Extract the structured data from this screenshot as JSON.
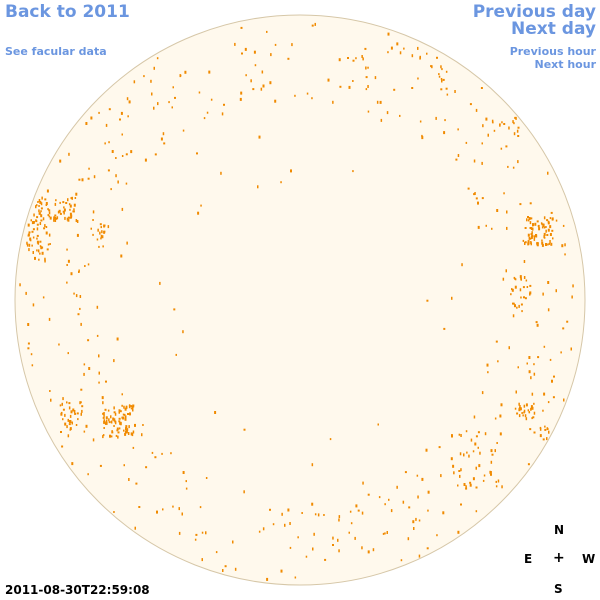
{
  "nav": {
    "back_label": "Back to 2011",
    "prev_day_label": "Previous day",
    "next_day_label": "Next day",
    "facular_label": "See facular data",
    "prev_hour_label": "Previous hour",
    "next_hour_label": "Next hour"
  },
  "compass": {
    "north": "N",
    "east": "E",
    "center": "+",
    "west": "W",
    "south": "S"
  },
  "timestamp": "2011-08-30T22:59:08",
  "colors": {
    "link": "#6b96e0",
    "disk_fill": "#fff9ed",
    "disk_edge": "#d6c7a8",
    "feature": "#f08a00"
  },
  "image": {
    "description_icon": "solar-disk-image"
  }
}
